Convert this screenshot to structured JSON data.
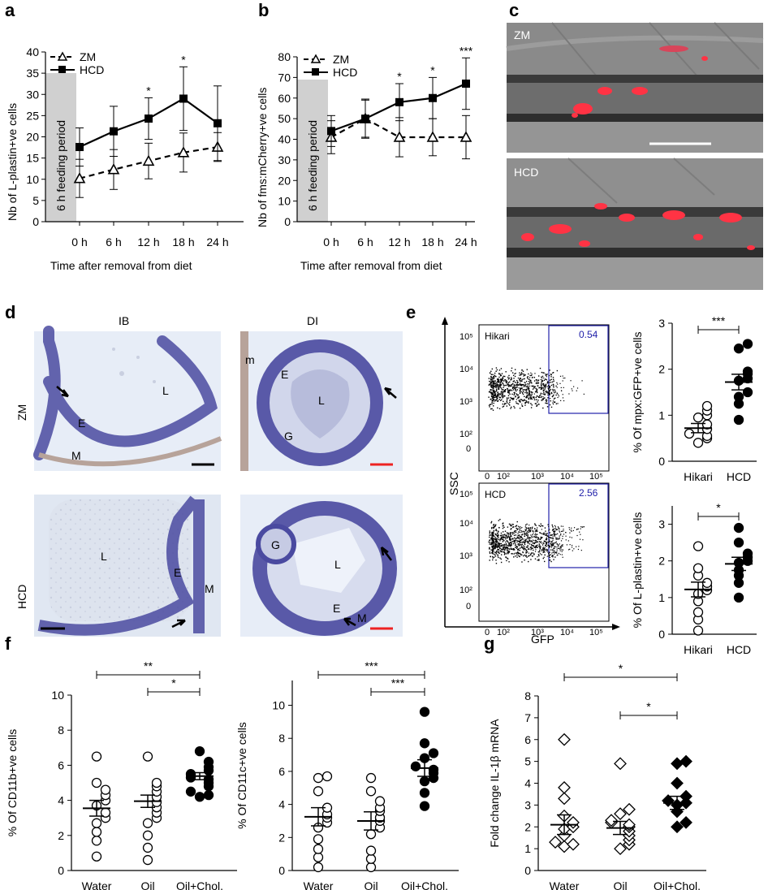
{
  "panels": {
    "a": "a",
    "b": "b",
    "c": "c",
    "d": "d",
    "e": "e",
    "f": "f",
    "g": "g"
  },
  "panel_a": {
    "ylabel": "Nb of L-plastin+ve cells",
    "xlabel": "Time after removal from diet",
    "feeding": "6 h feeding period",
    "legend": [
      "ZM",
      "HCD"
    ]
  },
  "panel_b": {
    "ylabel": "Nb of fms:mCherry+ve cells",
    "xlabel": "Time after removal from diet",
    "feeding": "6 h feeding period",
    "legend": [
      "ZM",
      "HCD"
    ]
  },
  "panel_c": {
    "labels": [
      "ZM",
      "HCD"
    ]
  },
  "panel_d": {
    "col_labels": [
      "IB",
      "DI"
    ],
    "row_labels": [
      "ZM",
      "HCD"
    ],
    "tissue_letters": {
      "zm_ib": [
        "L",
        "E",
        "M"
      ],
      "zm_di": [
        "E",
        "L",
        "G",
        "m"
      ],
      "hcd_ib": [
        "L",
        "E",
        "M"
      ],
      "hcd_di": [
        "G",
        "L",
        "E",
        "M"
      ]
    }
  },
  "panel_e": {
    "flow_labels": [
      "Hikari",
      "HCD"
    ],
    "gate_values": [
      "0.54",
      "2.56"
    ],
    "ylabel": "SSC",
    "xlabel": "GFP",
    "yticks": [
      "10⁵",
      "10⁴",
      "10³",
      "10²",
      "0"
    ],
    "xticks": [
      "0",
      "10²",
      "10³",
      "10⁴",
      "10⁵"
    ]
  },
  "panel_f": {
    "colors": {
      "open": "#ffffff",
      "filled": "#000000"
    }
  },
  "chart_data": [
    {
      "id": "a",
      "type": "line",
      "categories": [
        "0 h",
        "6 h",
        "12 h",
        "18 h",
        "24 h"
      ],
      "series": [
        {
          "name": "ZM",
          "values": [
            10.2,
            12.3,
            14.3,
            16.3,
            17.6
          ],
          "err": [
            4.5,
            4.7,
            4.2,
            4.6,
            3.4
          ]
        },
        {
          "name": "HCD",
          "values": [
            17.6,
            21.3,
            24.3,
            29.0,
            23.2
          ],
          "err": [
            4.5,
            5.9,
            4.9,
            7.5,
            8.8
          ]
        }
      ],
      "significance": [
        "",
        "",
        "*",
        "*",
        ""
      ],
      "ylim": [
        0,
        40
      ],
      "yticks": [
        0,
        5,
        10,
        15,
        20,
        25,
        30,
        35,
        40
      ]
    },
    {
      "id": "b",
      "type": "line",
      "categories": [
        "0 h",
        "6 h",
        "12 h",
        "18 h",
        "24 h"
      ],
      "series": [
        {
          "name": "ZM",
          "values": [
            41,
            50,
            41,
            41,
            41
          ],
          "err": [
            8,
            9,
            9.5,
            9,
            10.5
          ]
        },
        {
          "name": "HCD",
          "values": [
            44,
            50,
            58,
            60,
            67
          ],
          "err": [
            7.5,
            9.5,
            9,
            10,
            12.5
          ]
        }
      ],
      "significance": [
        "",
        "",
        "*",
        "*",
        "***"
      ],
      "ylim": [
        0,
        80
      ],
      "yticks": [
        0,
        10,
        20,
        30,
        40,
        50,
        60,
        70,
        80
      ]
    },
    {
      "id": "e-top",
      "type": "scatter",
      "ylabel": "% Of mpx:GFP+ve cells",
      "categories": [
        "Hikari",
        "HCD"
      ],
      "groups": [
        {
          "name": "Hikari",
          "values": [
            1.2,
            1.1,
            1.0,
            0.95,
            0.8,
            0.7,
            0.6,
            0.55,
            0.5,
            0.4
          ],
          "mean": 0.72,
          "sem": 0.1
        },
        {
          "name": "HCD",
          "values": [
            2.55,
            2.45,
            1.95,
            1.9,
            1.8,
            1.75,
            1.5,
            1.4,
            1.25,
            0.9
          ],
          "mean": 1.72,
          "sem": 0.17
        }
      ],
      "significance": "***",
      "ylim": [
        0,
        3
      ],
      "yticks": [
        0,
        1,
        2,
        3
      ]
    },
    {
      "id": "e-bottom",
      "type": "scatter",
      "ylabel": "% Of L-plastin+ve cells",
      "categories": [
        "Hikari",
        "HCD"
      ],
      "groups": [
        {
          "name": "Hikari",
          "values": [
            2.4,
            1.8,
            1.6,
            1.4,
            1.3,
            1.2,
            1.1,
            0.9,
            0.6,
            0.4,
            0.1
          ],
          "mean": 1.22,
          "sem": 0.2
        },
        {
          "name": "HCD",
          "values": [
            2.9,
            2.5,
            2.2,
            2.1,
            2.0,
            1.95,
            1.75,
            1.6,
            1.4,
            1.0
          ],
          "mean": 1.92,
          "sem": 0.18
        }
      ],
      "significance": "*",
      "ylim": [
        0,
        3.5
      ],
      "yticks": [
        0,
        1,
        2,
        3
      ]
    },
    {
      "id": "f-left",
      "type": "scatter",
      "ylabel": "% Of CD11b+ve cells",
      "categories": [
        "Water",
        "Oil",
        "Oil+Chol."
      ],
      "groups": [
        {
          "name": "Water",
          "values": [
            6.5,
            5.0,
            4.6,
            4.3,
            4.0,
            3.7,
            3.3,
            3.0,
            2.7,
            2.2,
            1.7,
            0.8
          ],
          "mean": 3.55,
          "sem": 0.45,
          "filled": false
        },
        {
          "name": "Oil",
          "values": [
            6.5,
            5.0,
            4.8,
            4.5,
            4.2,
            3.9,
            3.6,
            3.3,
            3.0,
            2.7,
            2.0,
            1.3,
            0.6
          ],
          "mean": 3.95,
          "sem": 0.35,
          "filled": false
        },
        {
          "name": "Oil+Chol.",
          "values": [
            6.8,
            6.2,
            5.9,
            5.7,
            5.5,
            5.3,
            5.2,
            5.0,
            4.8,
            4.5,
            4.3,
            4.2
          ],
          "mean": 5.38,
          "sem": 0.2,
          "filled": true
        }
      ],
      "brackets": [
        {
          "from": 0,
          "to": 2,
          "label": "**"
        },
        {
          "from": 1,
          "to": 2,
          "label": "*"
        }
      ],
      "ylim": [
        0,
        10
      ],
      "yticks": [
        0,
        2,
        4,
        6,
        8,
        10
      ]
    },
    {
      "id": "f-right",
      "type": "scatter",
      "ylabel": "% Of CD11c+ve cells",
      "categories": [
        "Water",
        "Oil",
        "Oil+Chol."
      ],
      "groups": [
        {
          "name": "Water",
          "values": [
            5.7,
            5.6,
            4.8,
            3.8,
            3.2,
            2.9,
            2.6,
            1.9,
            1.3,
            0.8,
            0.2,
            3.4
          ],
          "mean": 3.25,
          "sem": 0.55,
          "filled": false
        },
        {
          "name": "Oil",
          "values": [
            5.6,
            4.8,
            4.2,
            3.8,
            3.6,
            3.2,
            3.0,
            2.6,
            2.2,
            1.2,
            0.2,
            0.7
          ],
          "mean": 3.0,
          "sem": 0.55,
          "filled": false
        },
        {
          "name": "Oil+Chol.",
          "values": [
            9.6,
            7.7,
            7.1,
            6.8,
            6.3,
            6.1,
            5.9,
            5.6,
            5.4,
            4.7,
            3.9
          ],
          "mean": 6.2,
          "sem": 0.5,
          "filled": true
        }
      ],
      "brackets": [
        {
          "from": 0,
          "to": 2,
          "label": "***"
        },
        {
          "from": 1,
          "to": 2,
          "label": "***"
        }
      ],
      "ylim": [
        0,
        11.5
      ],
      "yticks": [
        0,
        2,
        4,
        6,
        8,
        10
      ]
    },
    {
      "id": "g",
      "type": "scatter",
      "ylabel": "Fold change IL-1β mRNA",
      "categories": [
        "Water",
        "Oil",
        "Oil+Chol."
      ],
      "groups": [
        {
          "name": "Water",
          "values": [
            6.0,
            3.8,
            3.3,
            2.5,
            2.2,
            2.0,
            1.9,
            1.6,
            1.3,
            1.2,
            1.1
          ],
          "mean": 2.1,
          "sem": 0.45,
          "filled": false
        },
        {
          "name": "Oil",
          "values": [
            4.9,
            2.8,
            2.6,
            2.3,
            2.1,
            2.0,
            1.8,
            1.6,
            1.4,
            1.2,
            1.0,
            2.2
          ],
          "mean": 1.95,
          "sem": 0.3,
          "filled": false
        },
        {
          "name": "Oil+Chol.",
          "values": [
            5.0,
            4.9,
            4.0,
            3.4,
            3.2,
            3.1,
            3.0,
            2.7,
            2.2,
            2.0
          ],
          "mean": 3.1,
          "sem": 0.3,
          "filled": true
        }
      ],
      "brackets": [
        {
          "from": 0,
          "to": 2,
          "label": "*"
        },
        {
          "from": 1,
          "to": 2,
          "label": "*"
        }
      ],
      "ylim": [
        0,
        8
      ],
      "yticks": [
        0,
        1,
        2,
        3,
        4,
        5,
        6,
        7,
        8
      ]
    }
  ]
}
